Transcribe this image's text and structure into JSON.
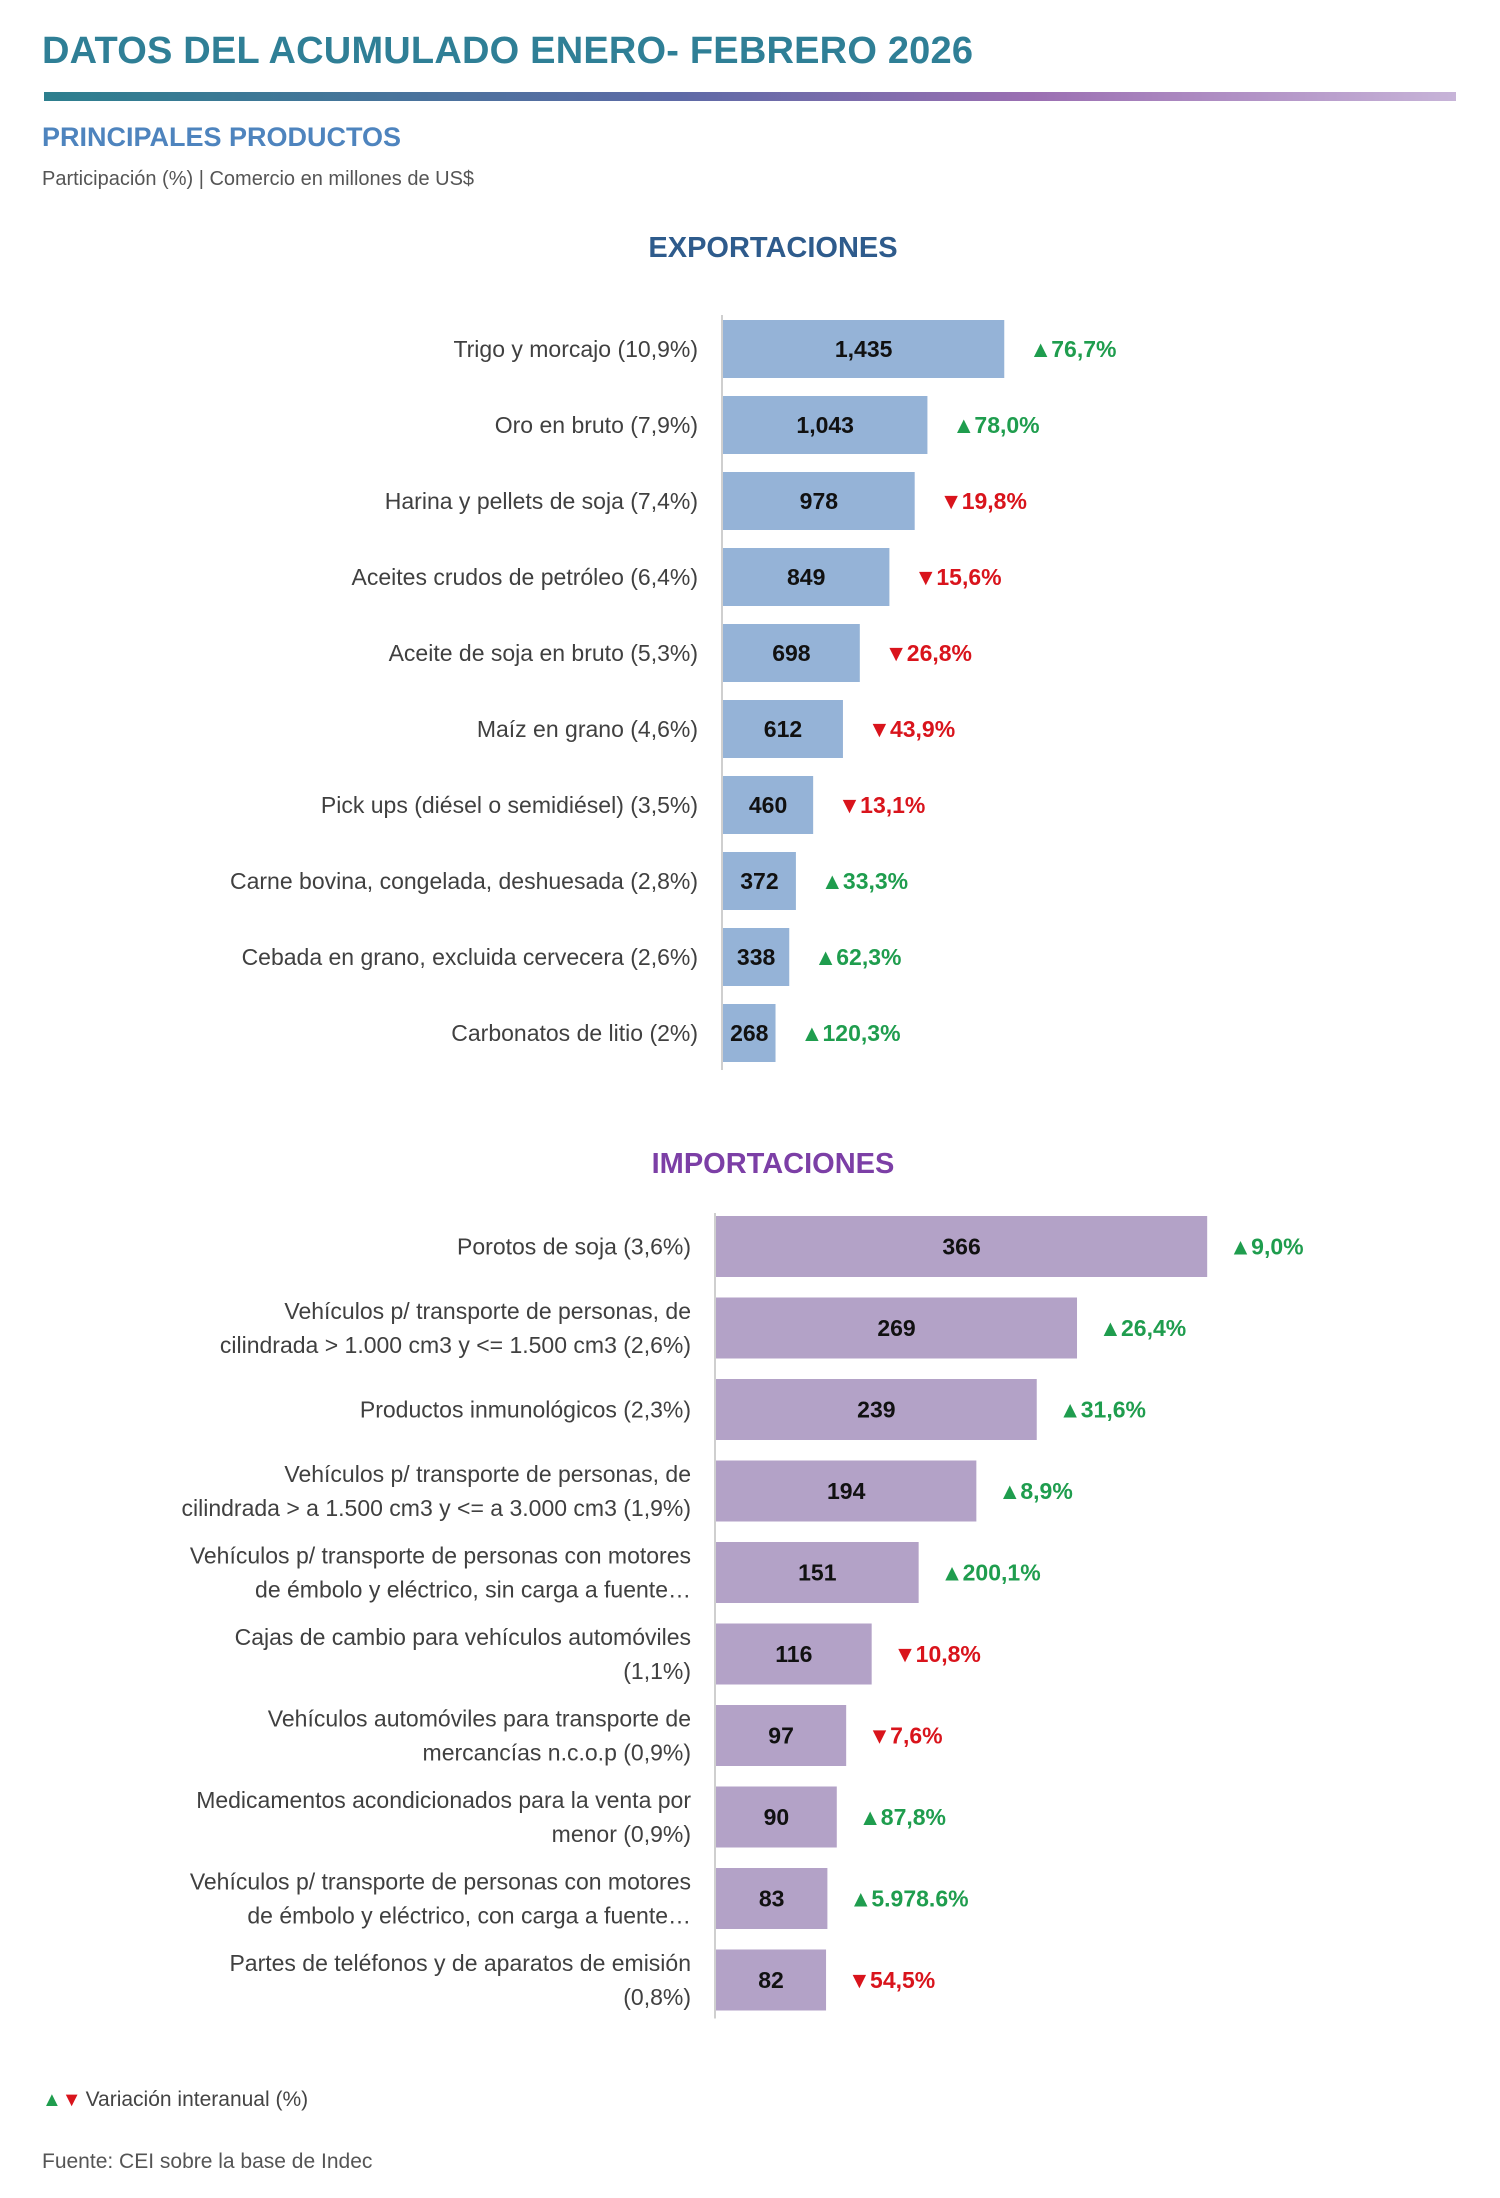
{
  "header": {
    "title": "DATOS DEL ACUMULADO ENERO- FEBRERO 2026",
    "subtitle": "PRINCIPALES PRODUCTOS",
    "units": "Participación (%) | Comercio en millones de US$"
  },
  "chart_data": [
    {
      "type": "bar",
      "orientation": "horizontal",
      "title": "EXPORTACIONES",
      "bar_color": "#95b3d7",
      "xlim": [
        0,
        1500
      ],
      "categories": [
        [
          "Trigo y morcajo  (10,9%)"
        ],
        [
          "Oro en bruto  (7,9%)"
        ],
        [
          "Harina y pellets de soja  (7,4%)"
        ],
        [
          "Aceites crudos de petróleo (6,4%)"
        ],
        [
          "Aceite de soja en bruto  (5,3%)"
        ],
        [
          "Maíz en grano  (4,6%)"
        ],
        [
          "Pick ups (diésel o semidiésel)  (3,5%)"
        ],
        [
          "Carne bovina, congelada, deshuesada (2,8%)"
        ],
        [
          "Cebada en grano, excluida cervecera (2,6%)"
        ],
        [
          "Carbonatos de litio (2%)"
        ]
      ],
      "values": [
        1435,
        1043,
        978,
        849,
        698,
        612,
        460,
        372,
        338,
        268
      ],
      "value_labels": [
        "1,435",
        "1,043",
        "978",
        "849",
        "698",
        "612",
        "460",
        "372",
        "338",
        "268"
      ],
      "variation": [
        {
          "dir": "up",
          "text": "76,7%"
        },
        {
          "dir": "up",
          "text": "78,0%"
        },
        {
          "dir": "down",
          "text": "19,8%"
        },
        {
          "dir": "down",
          "text": "15,6%"
        },
        {
          "dir": "down",
          "text": "26,8%"
        },
        {
          "dir": "down",
          "text": "43,9%"
        },
        {
          "dir": "down",
          "text": "13,1%"
        },
        {
          "dir": "up",
          "text": "33,3%"
        },
        {
          "dir": "up",
          "text": "62,3%"
        },
        {
          "dir": "up",
          "text": "120,3%"
        }
      ]
    },
    {
      "type": "bar",
      "orientation": "horizontal",
      "title": "IMPORTACIONES",
      "bar_color": "#b3a2c7",
      "xlim": [
        0,
        383
      ],
      "categories": [
        [
          "Porotos de soja  (3,6%)"
        ],
        [
          "Vehículos p/ transporte de personas, de",
          "cilindrada  > 1.000 cm3 y <= 1.500 cm3  (2,6%)"
        ],
        [
          "Productos inmunológicos (2,3%)"
        ],
        [
          "Vehículos p/ transporte de personas, de",
          "cilindrada  > a 1.500 cm3 y <= a 3.000 cm3  (1,9%)"
        ],
        [
          "Vehículos p/ transporte de personas con motores",
          "de émbolo y eléctrico, sin carga a fuente…"
        ],
        [
          "Cajas de cambio para vehículos automóviles",
          "(1,1%)"
        ],
        [
          "Vehículos automóviles para transporte de",
          "mercancías n.c.o.p (0,9%)"
        ],
        [
          "Medicamentos acondicionados para la venta por",
          "menor (0,9%)"
        ],
        [
          "Vehículos p/ transporte de personas con motores",
          "de émbolo y eléctrico, con carga a fuente…"
        ],
        [
          "Partes de teléfonos y de aparatos de emisión",
          "(0,8%)"
        ]
      ],
      "values": [
        366,
        269,
        239,
        194,
        151,
        116,
        97,
        90,
        83,
        82
      ],
      "value_labels": [
        "366",
        "269",
        "239",
        "194",
        "151",
        "116",
        "97",
        "90",
        "83",
        "82"
      ],
      "variation": [
        {
          "dir": "up",
          "text": "9,0%"
        },
        {
          "dir": "up",
          "text": "26,4%"
        },
        {
          "dir": "up",
          "text": "31,6%"
        },
        {
          "dir": "up",
          "text": "8,9%"
        },
        {
          "dir": "up",
          "text": "200,1%"
        },
        {
          "dir": "down",
          "text": "10,8%"
        },
        {
          "dir": "down",
          "text": "7,6%"
        },
        {
          "dir": "up",
          "text": "87,8%"
        },
        {
          "dir": "up",
          "text": "5.978.6%"
        },
        {
          "dir": "down",
          "text": "54,5%"
        }
      ]
    }
  ],
  "legend": {
    "up_symbol": "▲",
    "down_symbol": "▼",
    "text": "Variación interanual (%)",
    "up_color": "#1f9d4e",
    "down_color": "#d9141c"
  },
  "source": "Fuente: CEI sobre la base de Indec"
}
